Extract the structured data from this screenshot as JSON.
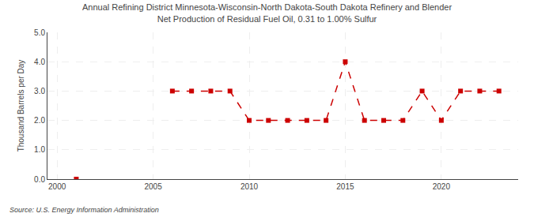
{
  "chart_data": {
    "type": "line",
    "title": "Annual Refining District Minnesota-Wisconsin-North Dakota-South Dakota Refinery and Blender\nNet Production of Residual Fuel Oil, 0.31 to 1.00% Sulfur",
    "ylabel": "Thousand Barrels per Day",
    "source": "Source: U.S. Energy Information Administration",
    "x": [
      2001,
      2002,
      2003,
      2004,
      2005,
      2006,
      2007,
      2008,
      2009,
      2010,
      2011,
      2012,
      2013,
      2014,
      2015,
      2016,
      2017,
      2018,
      2019,
      2020,
      2021,
      2022,
      2023
    ],
    "values": [
      0.0,
      null,
      null,
      null,
      null,
      3.0,
      3.0,
      3.0,
      3.0,
      2.0,
      2.0,
      2.0,
      2.0,
      2.0,
      4.0,
      2.0,
      2.0,
      2.0,
      3.0,
      2.0,
      3.0,
      3.0,
      3.0
    ],
    "color": "#cc0000",
    "marker": "square",
    "line_style": "dashed",
    "xlim": [
      1999.5,
      2024
    ],
    "xticks": [
      2000,
      2005,
      2010,
      2015,
      2020
    ],
    "ylim": [
      0.0,
      5.0
    ],
    "yticks": [
      {
        "value": 0.0,
        "label": "0.0"
      },
      {
        "value": 1.0,
        "label": "1.0"
      },
      {
        "value": 2.0,
        "label": "2.0"
      },
      {
        "value": 3.0,
        "label": "3.0"
      },
      {
        "value": 4.0,
        "label": "4.0"
      },
      {
        "value": 5.0,
        "label": "5.0"
      }
    ],
    "grid": true
  }
}
